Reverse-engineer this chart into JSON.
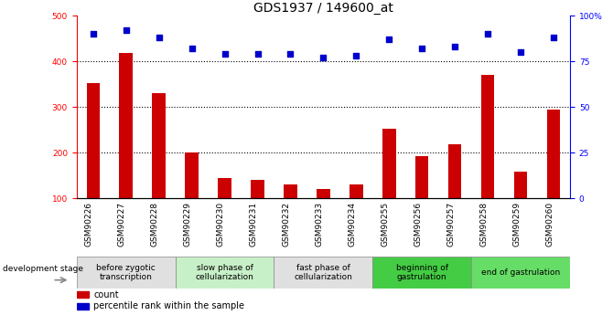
{
  "title": "GDS1937 / 149600_at",
  "categories": [
    "GSM90226",
    "GSM90227",
    "GSM90228",
    "GSM90229",
    "GSM90230",
    "GSM90231",
    "GSM90232",
    "GSM90233",
    "GSM90234",
    "GSM90255",
    "GSM90256",
    "GSM90257",
    "GSM90258",
    "GSM90259",
    "GSM90260"
  ],
  "bar_values": [
    352,
    418,
    330,
    200,
    145,
    140,
    130,
    120,
    130,
    252,
    193,
    218,
    370,
    158,
    295
  ],
  "scatter_values": [
    90,
    92,
    88,
    82,
    79,
    79,
    79,
    77,
    78,
    87,
    82,
    83,
    90,
    80,
    88
  ],
  "bar_color": "#cc0000",
  "scatter_color": "#0000cc",
  "ylim_left": [
    100,
    500
  ],
  "ylim_right": [
    0,
    100
  ],
  "yticks_left": [
    100,
    200,
    300,
    400,
    500
  ],
  "yticks_right": [
    0,
    25,
    50,
    75,
    100
  ],
  "yticklabels_right": [
    "0",
    "25",
    "50",
    "75",
    "100%"
  ],
  "grid_values": [
    200,
    300,
    400
  ],
  "stages": [
    {
      "label": "before zygotic\ntranscription",
      "start": 0,
      "end": 3,
      "color": "#e0e0e0"
    },
    {
      "label": "slow phase of\ncellularization",
      "start": 3,
      "end": 6,
      "color": "#c8f0c8"
    },
    {
      "label": "fast phase of\ncellularization",
      "start": 6,
      "end": 9,
      "color": "#e0e0e0"
    },
    {
      "label": "beginning of\ngastrulation",
      "start": 9,
      "end": 12,
      "color": "#44cc44"
    },
    {
      "label": "end of gastrulation",
      "start": 12,
      "end": 15,
      "color": "#66dd66"
    }
  ],
  "dev_stage_label": "development stage",
  "background_color": "#ffffff",
  "title_fontsize": 10,
  "tick_fontsize": 6.5,
  "stage_fontsize": 6.5
}
